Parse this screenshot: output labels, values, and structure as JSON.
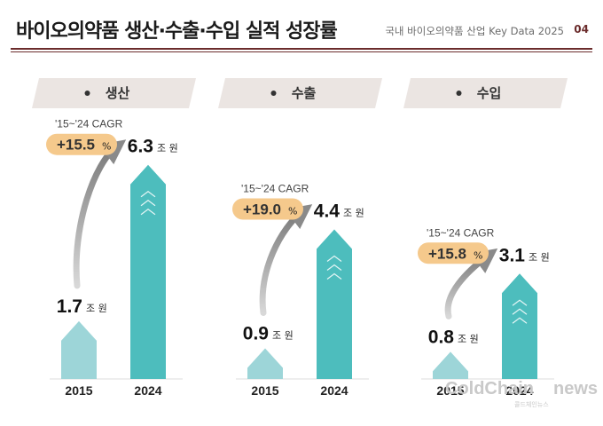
{
  "header": {
    "title": "바이오의약품 생산·수출·수입 실적 성장률",
    "subtitle": "국내 바이오의약품 산업 Key Data 2025",
    "page_number": "04",
    "accent_color": "#6b2c2c"
  },
  "colors": {
    "bar_2015": "#9dd5d8",
    "bar_2024": "#4dbdbd",
    "cagr_badge": "#f5c98c",
    "panel_header": "#ebe5e2"
  },
  "chart_data": [
    {
      "type": "bar",
      "title": "생산",
      "categories": [
        "2015",
        "2024"
      ],
      "values": [
        1.7,
        6.3
      ],
      "value_labels": [
        "1.7",
        "6.3"
      ],
      "unit": "조 원",
      "cagr_label": "'15~'24 CAGR",
      "cagr_value": "+15.5",
      "cagr_unit": "%"
    },
    {
      "type": "bar",
      "title": "수출",
      "categories": [
        "2015",
        "2024"
      ],
      "values": [
        0.9,
        4.4
      ],
      "value_labels": [
        "0.9",
        "4.4"
      ],
      "unit": "조 원",
      "cagr_label": "'15~'24 CAGR",
      "cagr_value": "+19.0",
      "cagr_unit": "%"
    },
    {
      "type": "bar",
      "title": "수입",
      "categories": [
        "2015",
        "2024"
      ],
      "values": [
        0.8,
        3.1
      ],
      "value_labels": [
        "0.8",
        "3.1"
      ],
      "unit": "조 원",
      "cagr_label": "'15~'24 CAGR",
      "cagr_value": "+15.8",
      "cagr_unit": "%"
    }
  ],
  "watermark": {
    "text": "ColdChain",
    "suffix": "news",
    "tagline": "콜드체인뉴스"
  }
}
